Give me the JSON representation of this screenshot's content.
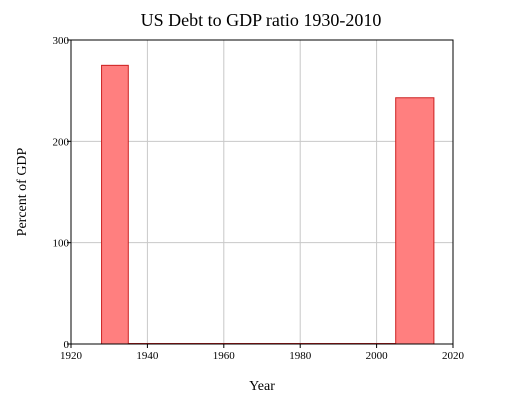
{
  "chart_data": {
    "type": "bar",
    "title": "US Debt to GDP ratio 1930-2010",
    "xlabel": "Year",
    "ylabel": "Percent of GDP",
    "xlim": [
      1920,
      2020
    ],
    "ylim": [
      0,
      300
    ],
    "x_ticks": [
      1920,
      1940,
      1960,
      1980,
      2000,
      2020
    ],
    "y_ticks": [
      0,
      100,
      200,
      300
    ],
    "grid": true,
    "bars": [
      {
        "x_start": 1928,
        "x_end": 1935,
        "value": 275
      },
      {
        "x_start": 2005,
        "x_end": 2015,
        "value": 243
      }
    ],
    "colors": {
      "bar_fill": "#ff7f7f",
      "bar_stroke": "#cc1f1f",
      "grid": "#c8c8c8"
    }
  }
}
